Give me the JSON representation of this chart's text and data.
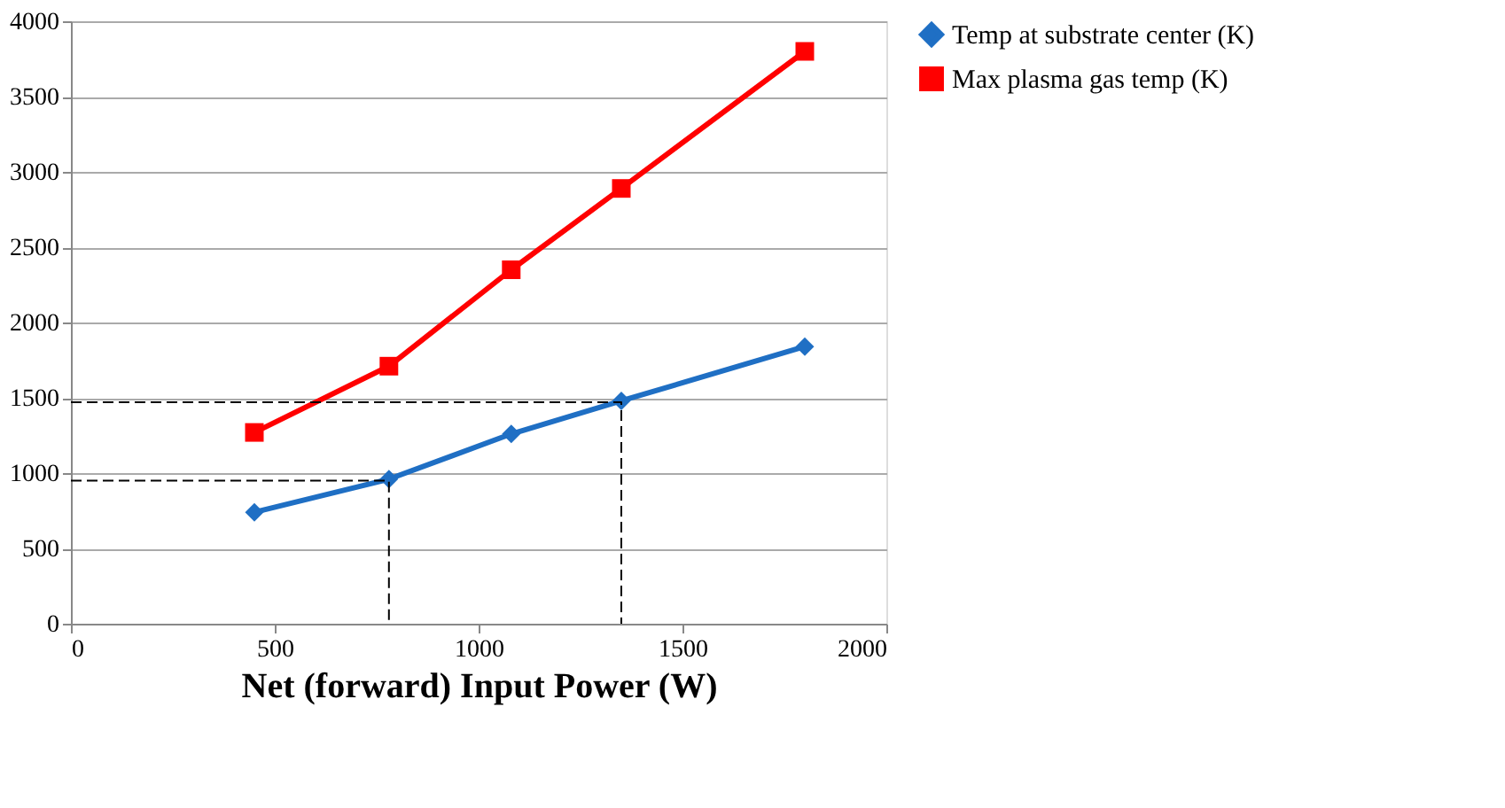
{
  "chart_data": {
    "type": "line",
    "xlabel": "Net (forward) Input Power (W)",
    "xlim": [
      0,
      2000
    ],
    "xticks": [
      0,
      500,
      1000,
      1500,
      2000
    ],
    "ylim": [
      0,
      4000
    ],
    "yticks": [
      0,
      500,
      1000,
      1500,
      2000,
      2500,
      3000,
      3500,
      4000
    ],
    "grid": "y",
    "legend": "right",
    "series": [
      {
        "name": "Temp at substrate center (K)",
        "color": "#1f6fc4",
        "marker": "diamond",
        "line_style": "solid",
        "x": [
          450,
          780,
          1080,
          1350,
          1800
        ],
        "values": [
          740,
          960,
          1260,
          1480,
          1840
        ]
      },
      {
        "name": "Max plasma gas temp (K)",
        "color": "#ff0000",
        "marker": "square",
        "line_style": "solid",
        "x": [
          450,
          780,
          1080,
          1350,
          1800
        ],
        "values": [
          1270,
          1710,
          2350,
          2890,
          3800
        ]
      },
      {
        "color": "#000000",
        "marker": "none",
        "line_style": "dashed",
        "x": [
          0,
          780,
          780
        ],
        "values": [
          950,
          950,
          0
        ]
      },
      {
        "color": "#000000",
        "marker": "none",
        "line_style": "dashed",
        "x": [
          0,
          1350,
          1350
        ],
        "values": [
          1470,
          1470,
          0
        ]
      }
    ]
  }
}
